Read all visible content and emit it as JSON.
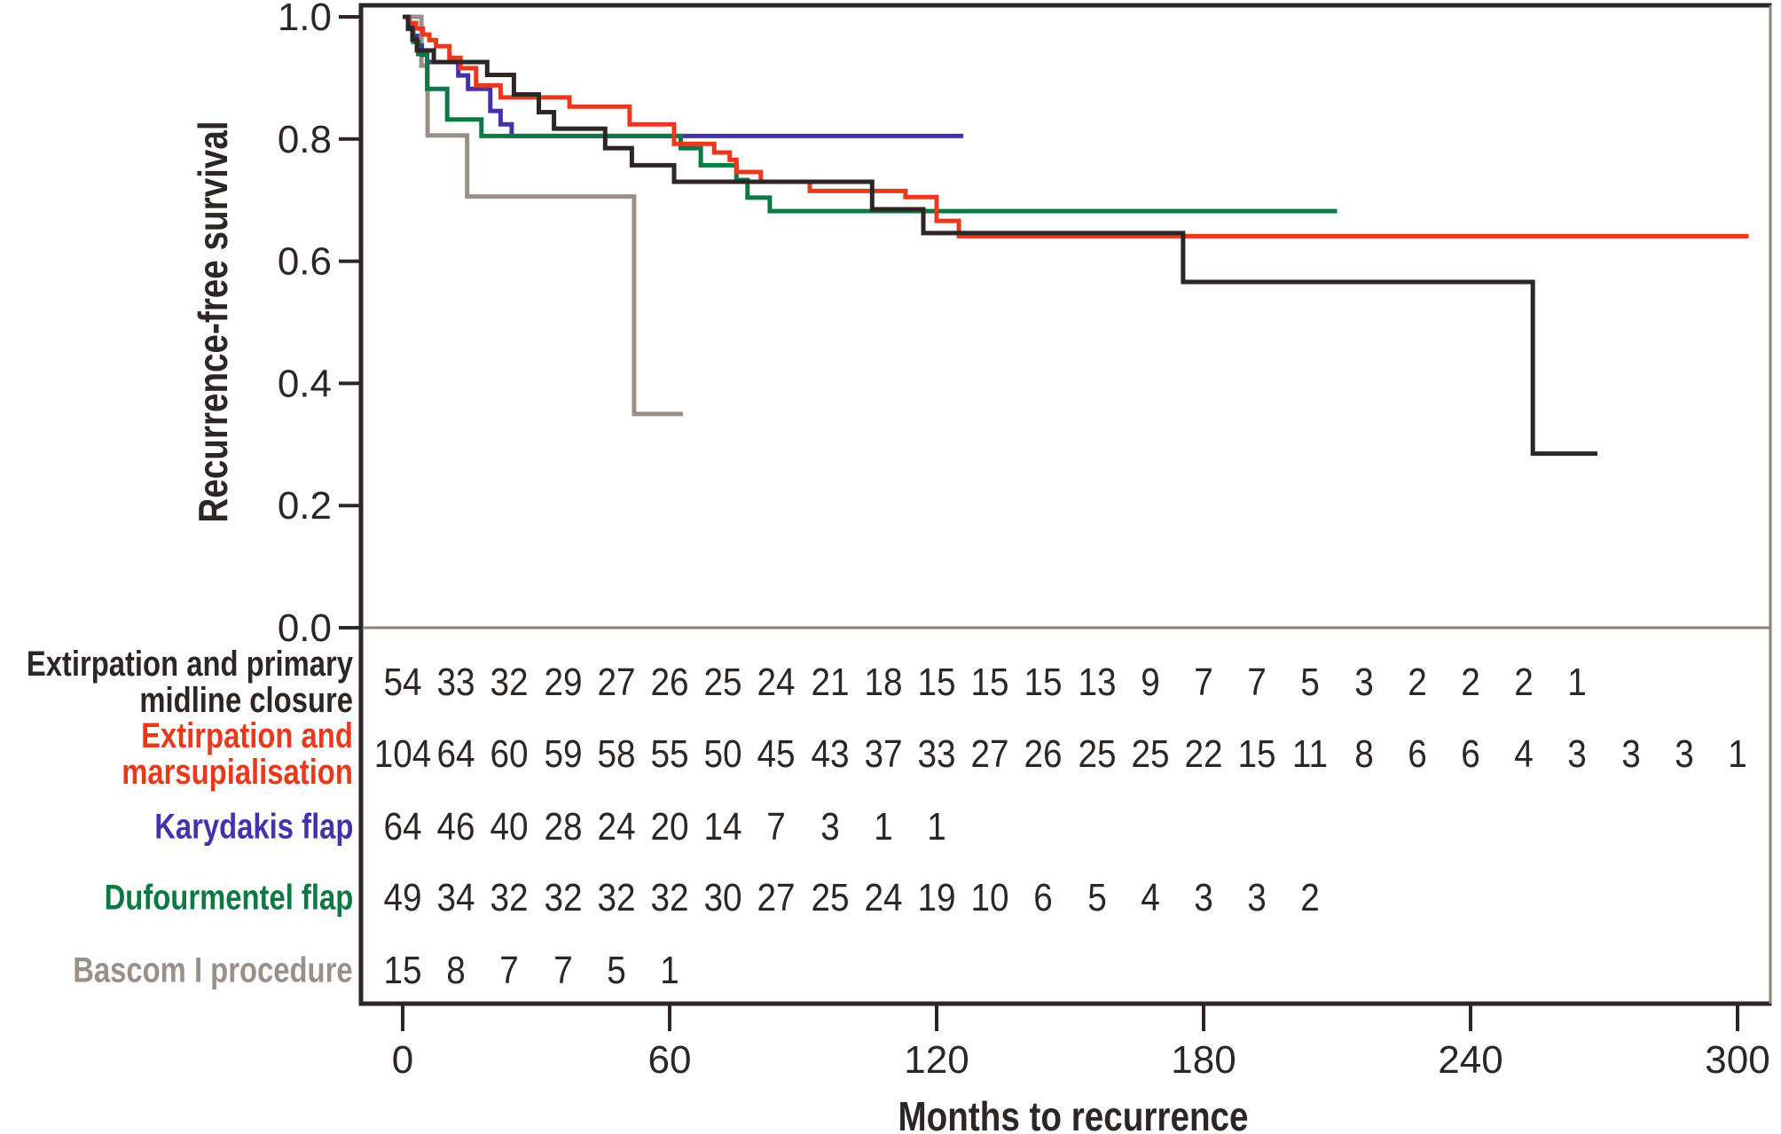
{
  "chart_data": {
    "type": "line",
    "subtype": "kaplan-meier-step",
    "title": "",
    "xlabel": "Months to recurrence",
    "ylabel": "Recurrence-free survival",
    "xlim": [
      0,
      300
    ],
    "ylim": [
      0.0,
      1.0
    ],
    "x_ticks": [
      0,
      60,
      120,
      180,
      240,
      300
    ],
    "y_tick_values": [
      0.0,
      0.2,
      0.4,
      0.6,
      0.8,
      1.0
    ],
    "y_tick_labels": [
      "0.0",
      "0.2",
      "0.4",
      "0.6",
      "0.8",
      "1.0"
    ],
    "grid": false,
    "axis_color": "#2d2624",
    "baseline_color": "#8d8279",
    "risk_table_interval_months": 12,
    "series": [
      {
        "key": "midline-closure",
        "name": "Extirpation and primary midline closure",
        "label_lines": [
          "Extirpation and primary",
          "midline closure"
        ],
        "color": "#2d2624",
        "steps": [
          [
            0,
            1
          ],
          [
            1.2,
            0.981
          ],
          [
            2.2,
            0.963
          ],
          [
            3.2,
            0.945
          ],
          [
            7,
            0.926
          ],
          [
            19,
            0.905
          ],
          [
            25,
            0.873
          ],
          [
            30.6,
            0.844
          ],
          [
            34,
            0.817
          ],
          [
            45.5,
            0.785
          ],
          [
            51.5,
            0.757
          ],
          [
            61,
            0.73
          ],
          [
            105.5,
            0.685
          ],
          [
            117,
            0.646
          ],
          [
            175.4,
            0.566
          ],
          [
            254,
            0.285
          ]
        ],
        "end_month": 268.5,
        "at_risk": [
          54,
          33,
          32,
          29,
          27,
          26,
          25,
          24,
          21,
          18,
          15,
          15,
          15,
          13,
          9,
          7,
          7,
          5,
          3,
          2,
          2,
          2,
          1
        ]
      },
      {
        "key": "marsupialisation",
        "name": "Extirpation and marsupialisation",
        "label_lines": [
          "Extirpation and",
          "marsupialisation"
        ],
        "color": "#e8391c",
        "steps": [
          [
            0,
            1
          ],
          [
            1.5,
            0.99
          ],
          [
            3,
            0.981
          ],
          [
            4.5,
            0.971
          ],
          [
            6,
            0.962
          ],
          [
            7.5,
            0.952
          ],
          [
            10.5,
            0.933
          ],
          [
            13,
            0.916
          ],
          [
            16.5,
            0.888
          ],
          [
            22,
            0.868
          ],
          [
            37.5,
            0.853
          ],
          [
            51,
            0.824
          ],
          [
            61,
            0.792
          ],
          [
            70,
            0.778
          ],
          [
            73.5,
            0.766
          ],
          [
            75,
            0.746
          ],
          [
            80.5,
            0.73
          ],
          [
            91.5,
            0.715
          ],
          [
            113,
            0.705
          ],
          [
            120,
            0.666
          ],
          [
            125,
            0.641
          ]
        ],
        "end_month": 302.5,
        "at_risk": [
          104,
          64,
          60,
          59,
          58,
          55,
          50,
          45,
          43,
          37,
          33,
          27,
          26,
          25,
          25,
          22,
          15,
          11,
          8,
          6,
          6,
          4,
          3,
          3,
          3,
          1
        ]
      },
      {
        "key": "karydakis-flap",
        "name": "Karydakis flap",
        "label_lines": [
          "Karydakis flap"
        ],
        "color": "#4233ad",
        "steps": [
          [
            0,
            1
          ],
          [
            1.2,
            0.985
          ],
          [
            2.3,
            0.969
          ],
          [
            3.2,
            0.953
          ],
          [
            4.3,
            0.938
          ],
          [
            5.5,
            0.926
          ],
          [
            12.5,
            0.904
          ],
          [
            14.7,
            0.882
          ],
          [
            19.7,
            0.846
          ],
          [
            22,
            0.824
          ],
          [
            24.5,
            0.805
          ]
        ],
        "end_month": 126,
        "at_risk": [
          64,
          46,
          40,
          28,
          24,
          20,
          14,
          7,
          3,
          1,
          1
        ]
      },
      {
        "key": "dufourmentel-flap",
        "name": "Dufourmentel flap",
        "label_lines": [
          "Dufourmentel flap"
        ],
        "color": "#0b7a42",
        "steps": [
          [
            0,
            1
          ],
          [
            1.3,
            0.98
          ],
          [
            2.4,
            0.959
          ],
          [
            3.5,
            0.939
          ],
          [
            5.5,
            0.882
          ],
          [
            10,
            0.832
          ],
          [
            17.7,
            0.805
          ],
          [
            62.5,
            0.785
          ],
          [
            67,
            0.757
          ],
          [
            75,
            0.733
          ],
          [
            77.5,
            0.704
          ],
          [
            82.5,
            0.682
          ]
        ],
        "end_month": 210,
        "at_risk": [
          49,
          34,
          32,
          32,
          32,
          32,
          30,
          27,
          25,
          24,
          19,
          10,
          6,
          5,
          4,
          3,
          3,
          2
        ]
      },
      {
        "key": "bascom-1",
        "name": "Bascom I procedure",
        "label_lines": [
          "Bascom I procedure"
        ],
        "color": "#9b9089",
        "steps": [
          [
            0,
            1
          ],
          [
            4.2,
            0.92
          ],
          [
            5.6,
            0.806
          ],
          [
            14.5,
            0.706
          ],
          [
            52,
            0.35
          ]
        ],
        "end_month": 63,
        "at_risk": [
          15,
          8,
          7,
          7,
          5,
          1
        ]
      }
    ]
  }
}
